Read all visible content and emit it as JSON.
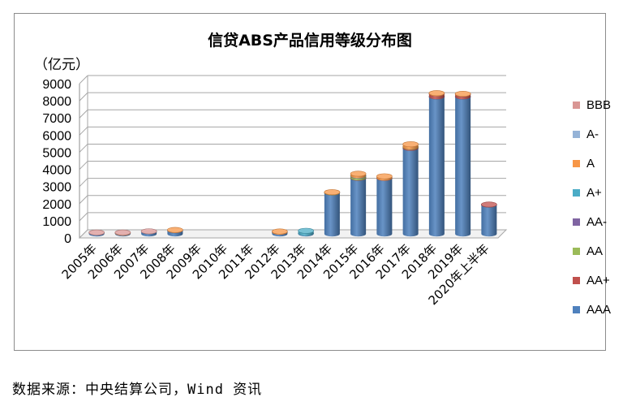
{
  "page": {
    "title": "信贷ABS产品信用等级分布图",
    "unit": "（亿元）",
    "source": "数据来源：中央结算公司，Wind 资讯"
  },
  "chart_data": {
    "type": "bar",
    "stacked": true,
    "title": "信贷ABS产品信用等级分布图",
    "ylabel": "（亿元）",
    "xlabel": "",
    "ylim": [
      0,
      9000
    ],
    "yticks": [
      "0",
      "1000",
      "2000",
      "3000",
      "4000",
      "5000",
      "6000",
      "7000",
      "8000",
      "9000"
    ],
    "grid": true,
    "legend_position": "right",
    "categories": [
      "2005年",
      "2006年",
      "2007年",
      "2008年",
      "2009年",
      "2010年",
      "2011年",
      "2012年",
      "2013年",
      "2014年",
      "2015年",
      "2016年",
      "2017年",
      "2018年",
      "2019年",
      "2020年上半年"
    ],
    "series": [
      {
        "name": "AAA",
        "color": "#4f81bd",
        "values": [
          60,
          40,
          140,
          200,
          0,
          0,
          0,
          100,
          30,
          2400,
          3250,
          3250,
          5000,
          8000,
          8000,
          1700
        ]
      },
      {
        "name": "AA+",
        "color": "#c0504d",
        "values": [
          0,
          0,
          0,
          0,
          0,
          0,
          0,
          0,
          0,
          10,
          20,
          10,
          60,
          180,
          150,
          10
        ]
      },
      {
        "name": "AA",
        "color": "#9bbb59",
        "values": [
          0,
          0,
          0,
          0,
          0,
          0,
          0,
          0,
          0,
          5,
          100,
          0,
          20,
          0,
          0,
          0
        ]
      },
      {
        "name": "AA-",
        "color": "#8064a2",
        "values": [
          0,
          0,
          0,
          0,
          0,
          0,
          0,
          0,
          0,
          0,
          10,
          0,
          0,
          0,
          0,
          0
        ]
      },
      {
        "name": "A+",
        "color": "#4bacc6",
        "values": [
          0,
          0,
          0,
          0,
          0,
          0,
          0,
          0,
          150,
          0,
          10,
          0,
          0,
          0,
          0,
          0
        ]
      },
      {
        "name": "A",
        "color": "#f79646",
        "values": [
          0,
          30,
          0,
          30,
          0,
          0,
          0,
          40,
          0,
          20,
          120,
          100,
          150,
          30,
          20,
          0
        ]
      },
      {
        "name": "A-",
        "color": "#95b3d7",
        "values": [
          0,
          0,
          0,
          0,
          0,
          0,
          0,
          0,
          0,
          0,
          0,
          0,
          0,
          0,
          0,
          0
        ]
      },
      {
        "name": "BBB",
        "color": "#d99694",
        "values": [
          20,
          10,
          10,
          0,
          0,
          0,
          0,
          0,
          0,
          0,
          0,
          0,
          0,
          0,
          0,
          0
        ]
      }
    ]
  }
}
